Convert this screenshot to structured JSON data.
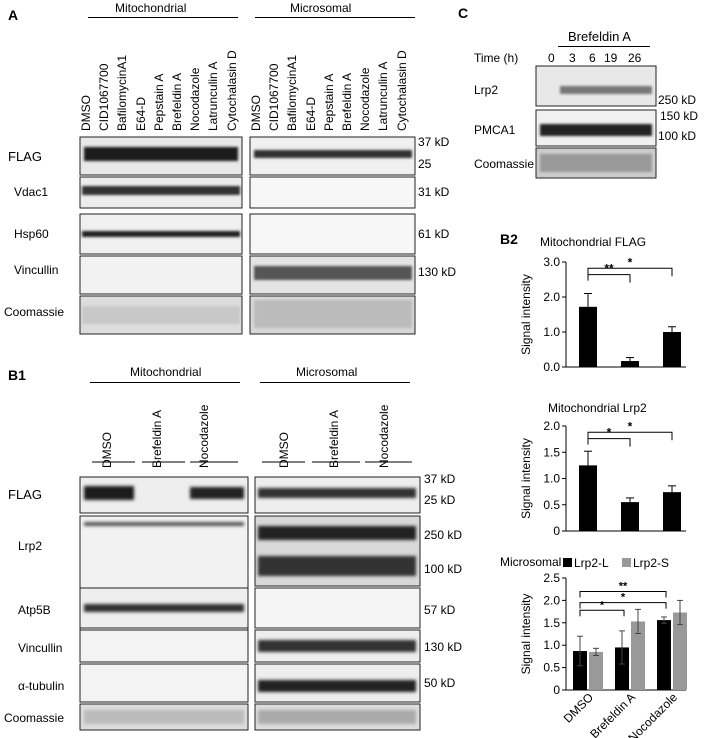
{
  "panelA": {
    "letter": "A",
    "groups": [
      "Mitochondrial",
      "Microsomal"
    ],
    "lanes": [
      "DMSO",
      "CID1067700",
      "BafilomycinA1",
      "E64-D",
      "Pepstain A",
      "Brefeldin A",
      "Nocodazole",
      "Latrunculin A",
      "Cytochalasin D"
    ],
    "rows": [
      "FLAG",
      "Vdac1",
      "Hsp60",
      "Vincullin",
      "Coomassie"
    ],
    "markers": [
      "37 kD",
      "25",
      "31 kD",
      "61 kD",
      "130 kD"
    ]
  },
  "panelB1": {
    "letter": "B1",
    "groups": [
      "Mitochondrial",
      "Microsomal"
    ],
    "lanes": [
      "DMSO",
      "Brefeldin A",
      "Nocodazole"
    ],
    "rows": [
      "FLAG",
      "Lrp2",
      "Atp5B",
      "Vincullin",
      "α-tubulin",
      "Coomassie"
    ],
    "markers": [
      "37  kD",
      "25  kD",
      "250 kD",
      "100 kD",
      "57  kD",
      "130 kD",
      "50  kD"
    ]
  },
  "panelC": {
    "letter": "C",
    "treatment": "Brefeldin A",
    "time_label": "Time (h)",
    "times": [
      "0",
      "3",
      "6",
      "19",
      "26"
    ],
    "rows": [
      "Lrp2",
      "PMCA1",
      "Coomassie"
    ],
    "markers": [
      "250 kD",
      "150 kD",
      "100 kD"
    ]
  },
  "panelB2": {
    "letter": "B2",
    "ylabel": "Signal intensity",
    "charts": [
      {
        "title": "Mitochondrial FLAG",
        "type": "bar",
        "ylim": [
          0,
          3.0
        ],
        "ticks": [
          "0.0",
          "1.0",
          "2.0",
          "3.0"
        ],
        "values": [
          1.72,
          0.17,
          1.0
        ],
        "errors": [
          0.38,
          0.1,
          0.15
        ],
        "sig": [
          "**",
          "*"
        ]
      },
      {
        "title": "Mitochondrial Lrp2",
        "type": "bar",
        "ylim": [
          0,
          2.0
        ],
        "ticks": [
          "0",
          "0.5",
          "1.0",
          "1.5",
          "2.0"
        ],
        "values": [
          1.25,
          0.55,
          0.74
        ],
        "errors": [
          0.27,
          0.08,
          0.12
        ],
        "sig": [
          "*",
          "*"
        ]
      },
      {
        "title": "Microsomal",
        "type": "bar",
        "ylim": [
          0,
          2.5
        ],
        "ticks": [
          "0",
          "0.5",
          "1.0",
          "1.5",
          "2.0",
          "2.5"
        ],
        "categories": [
          "DMSO",
          "Brefeldin A",
          "Nocodazole"
        ],
        "legend": [
          "Lrp2-L",
          "Lrp2-S"
        ],
        "series": [
          {
            "name": "Lrp2-L",
            "values": [
              0.87,
              0.95,
              1.56
            ],
            "errors": [
              0.33,
              0.37,
              0.07
            ]
          },
          {
            "name": "Lrp2-S",
            "values": [
              0.85,
              1.53,
              1.73
            ],
            "errors": [
              0.08,
              0.27,
              0.27
            ]
          }
        ],
        "sig": [
          "**",
          "*",
          "*"
        ]
      }
    ]
  },
  "chart_data": [
    {
      "type": "bar",
      "title": "Mitochondrial FLAG",
      "ylabel": "Signal intensity",
      "ylim": [
        0,
        3.0
      ],
      "categories": [
        "DMSO",
        "Brefeldin A",
        "Nocodazole"
      ],
      "values": [
        1.72,
        0.17,
        1.0
      ]
    },
    {
      "type": "bar",
      "title": "Mitochondrial Lrp2",
      "ylabel": "Signal intensity",
      "ylim": [
        0,
        2.0
      ],
      "categories": [
        "DMSO",
        "Brefeldin A",
        "Nocodazole"
      ],
      "values": [
        1.25,
        0.55,
        0.74
      ]
    },
    {
      "type": "bar",
      "title": "Microsomal",
      "ylabel": "Signal intensity",
      "ylim": [
        0,
        2.5
      ],
      "categories": [
        "DMSO",
        "Brefeldin A",
        "Nocodazole"
      ],
      "series": [
        {
          "name": "Lrp2-L",
          "values": [
            0.87,
            0.95,
            1.56
          ]
        },
        {
          "name": "Lrp2-S",
          "values": [
            0.85,
            1.53,
            1.73
          ]
        }
      ]
    }
  ]
}
